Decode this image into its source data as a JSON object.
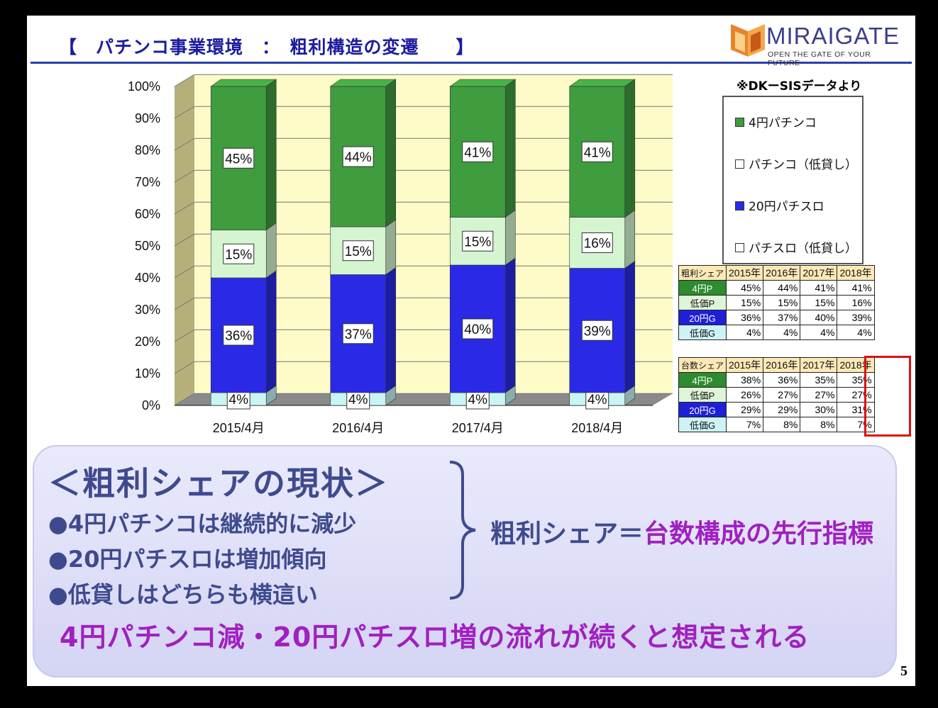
{
  "title": "【　パチンコ事業環境　：　粗利構造の変遷　　】",
  "logo": {
    "name": "MIRAIGATE",
    "tagline": "OPEN THE GATE OF YOUR FUTURE"
  },
  "chart_data": {
    "type": "bar",
    "stacked": true,
    "percent_axis": true,
    "categories": [
      "2015/4月",
      "2016/4月",
      "2017/4月",
      "2018/4月"
    ],
    "series": [
      {
        "name": "パチスロ（低貸し）",
        "color": "#c8f4f4",
        "values": [
          4,
          4,
          4,
          4
        ]
      },
      {
        "name": "20円パチスロ",
        "color": "#2a2ae6",
        "values": [
          36,
          37,
          40,
          39
        ]
      },
      {
        "name": "パチンコ（低貸し）",
        "color": "#d4f5d0",
        "values": [
          15,
          15,
          15,
          16
        ]
      },
      {
        "name": "4円パチンコ",
        "color": "#3f9c3f",
        "values": [
          45,
          44,
          41,
          41
        ]
      }
    ],
    "ylim": [
      0,
      100
    ],
    "yticks": [
      "0%",
      "10%",
      "20%",
      "30%",
      "40%",
      "50%",
      "60%",
      "70%",
      "80%",
      "90%",
      "100%"
    ],
    "data_labels": [
      [
        "4%",
        "36%",
        "15%",
        "45%"
      ],
      [
        "4%",
        "37%",
        "15%",
        "44%"
      ],
      [
        "4%",
        "40%",
        "15%",
        "41%"
      ],
      [
        "4%",
        "39%",
        "16%",
        "41%"
      ]
    ],
    "legend_position": "right",
    "note": "※DKーSISデータより"
  },
  "legend": [
    {
      "label": "4円パチンコ",
      "color": "#3f9c3f"
    },
    {
      "label": "パチンコ（低貸し）",
      "color": "#ffffff"
    },
    {
      "label": "20円パチスロ",
      "color": "#2a2ae6"
    },
    {
      "label": "パチスロ（低貸し）",
      "color": "#ffffff"
    }
  ],
  "gross_share_table": {
    "header": [
      "粗利シェア",
      "2015年",
      "2016年",
      "2017年",
      "2018年"
    ],
    "rows": [
      {
        "label": "4円P",
        "bg": "#2e8b2e",
        "fg": "#ffffff",
        "values": [
          "45%",
          "44%",
          "41%",
          "41%"
        ]
      },
      {
        "label": "低価P",
        "bg": "#dff5d8",
        "fg": "#111111",
        "values": [
          "15%",
          "15%",
          "15%",
          "16%"
        ]
      },
      {
        "label": "20円G",
        "bg": "#1f1fd6",
        "fg": "#ffffff",
        "values": [
          "36%",
          "37%",
          "40%",
          "39%"
        ]
      },
      {
        "label": "低価G",
        "bg": "#cdf3f7",
        "fg": "#111111",
        "values": [
          "4%",
          "4%",
          "4%",
          "4%"
        ]
      }
    ]
  },
  "unit_share_table": {
    "header": [
      "台数シェア",
      "2015年",
      "2016年",
      "2017年",
      "2018年"
    ],
    "rows": [
      {
        "label": "4円P",
        "bg": "#2e8b2e",
        "fg": "#ffffff",
        "values": [
          "38%",
          "36%",
          "35%",
          "35%"
        ]
      },
      {
        "label": "低価P",
        "bg": "#dff5d8",
        "fg": "#111111",
        "values": [
          "26%",
          "27%",
          "27%",
          "27%"
        ]
      },
      {
        "label": "20円G",
        "bg": "#1f1fd6",
        "fg": "#ffffff",
        "values": [
          "29%",
          "29%",
          "30%",
          "31%"
        ]
      },
      {
        "label": "低価G",
        "bg": "#cdf3f7",
        "fg": "#111111",
        "values": [
          "7%",
          "8%",
          "8%",
          "7%"
        ]
      }
    ]
  },
  "summary": {
    "heading": "＜粗利シェアの現状＞",
    "bullets": [
      "●4円パチンコは継続的に減少",
      "●20円パチスロは増加傾向",
      "●低貸しはどちらも横這い"
    ],
    "equation_lhs": "粗利シェア＝",
    "equation_rhs": "台数構成の先行指標",
    "conclusion": "4円パチンコ減・20円パチスロ増の流れが続くと想定される"
  },
  "page_number": "5"
}
